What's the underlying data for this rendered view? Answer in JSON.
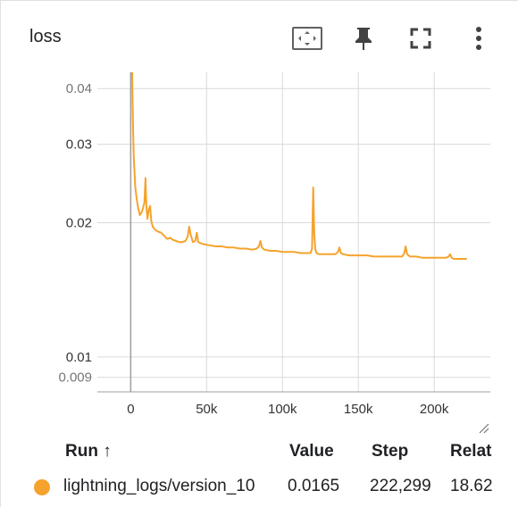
{
  "card": {
    "title": "loss",
    "icons": [
      "fit-domain-icon",
      "pin-icon",
      "fullscreen-icon",
      "more-vert-icon"
    ]
  },
  "chart_data": {
    "type": "line",
    "title": "",
    "xlabel": "",
    "ylabel": "",
    "yscale": "log",
    "xlim": [
      -22000,
      237000
    ],
    "ylim": [
      0.00835,
      0.0435
    ],
    "yticks": [
      {
        "value": 0.04,
        "label": "0.04",
        "minor": true
      },
      {
        "value": 0.03,
        "label": "0.03",
        "minor": false
      },
      {
        "value": 0.02,
        "label": "0.02",
        "minor": false
      },
      {
        "value": 0.01,
        "label": "0.01",
        "minor": false
      },
      {
        "value": 0.009,
        "label": "0.009",
        "minor": true
      }
    ],
    "xticks": [
      {
        "value": 0,
        "label": "0"
      },
      {
        "value": 50000,
        "label": "50k"
      },
      {
        "value": 100000,
        "label": "100k"
      },
      {
        "value": 150000,
        "label": "150k"
      },
      {
        "value": 200000,
        "label": "200k"
      }
    ],
    "grid": true,
    "series": [
      {
        "name": "lightning_logs/version_10",
        "color": "#f5a32c",
        "x": [
          500,
          1000,
          1500,
          2000,
          3000,
          4000,
          5000,
          6000,
          7500,
          9000,
          9700,
          10300,
          11000,
          12000,
          12800,
          13500,
          14500,
          16000,
          18000,
          20000,
          22000,
          24000,
          26000,
          28000,
          30000,
          32000,
          34000,
          36000,
          37500,
          38500,
          39500,
          41000,
          42500,
          43500,
          44500,
          46000,
          48000,
          52000,
          56000,
          60000,
          64000,
          68000,
          72000,
          76000,
          80000,
          83000,
          84500,
          85500,
          86500,
          88000,
          92000,
          96000,
          100000,
          104000,
          108000,
          112000,
          116000,
          118500,
          119500,
          120300,
          121000,
          121700,
          122500,
          124000,
          128000,
          132000,
          135000,
          136500,
          137500,
          138500,
          140000,
          144000,
          148000,
          152000,
          156000,
          160000,
          164000,
          168000,
          172000,
          176000,
          179000,
          180300,
          181200,
          182200,
          184000,
          188000,
          192000,
          196000,
          200000,
          204000,
          208000,
          209500,
          210500,
          211500,
          213000,
          216000,
          219000,
          221500
        ],
        "values": [
          0.058,
          0.042,
          0.033,
          0.028,
          0.024,
          0.0225,
          0.0215,
          0.0208,
          0.0212,
          0.0222,
          0.0252,
          0.0218,
          0.0204,
          0.0215,
          0.0218,
          0.0202,
          0.0196,
          0.0193,
          0.0191,
          0.019,
          0.0187,
          0.0184,
          0.0185,
          0.0183,
          0.0182,
          0.0181,
          0.0181,
          0.0182,
          0.0186,
          0.0196,
          0.0188,
          0.0181,
          0.0182,
          0.019,
          0.0181,
          0.018,
          0.0179,
          0.0178,
          0.0177,
          0.0177,
          0.0176,
          0.0176,
          0.0175,
          0.0175,
          0.0174,
          0.0175,
          0.0177,
          0.0182,
          0.0176,
          0.0174,
          0.0173,
          0.0173,
          0.0172,
          0.0172,
          0.0172,
          0.0171,
          0.0171,
          0.0171,
          0.0175,
          0.024,
          0.0188,
          0.0174,
          0.0171,
          0.017,
          0.017,
          0.017,
          0.017,
          0.0172,
          0.0176,
          0.0171,
          0.017,
          0.0169,
          0.0169,
          0.0169,
          0.0169,
          0.0168,
          0.0168,
          0.0168,
          0.0168,
          0.0168,
          0.0168,
          0.0171,
          0.0177,
          0.017,
          0.0168,
          0.0168,
          0.0167,
          0.0167,
          0.0167,
          0.0167,
          0.0167,
          0.0168,
          0.017,
          0.0167,
          0.0166,
          0.0166,
          0.0166,
          0.0166
        ]
      }
    ]
  },
  "table": {
    "headers": {
      "run": "Run ↑",
      "value": "Value",
      "step": "Step",
      "relative": "Relat"
    },
    "rows": [
      {
        "run": "lightning_logs/version_10",
        "value": "0.0165",
        "step": "222,299",
        "relative": "18.62",
        "color": "#f5a32c"
      }
    ]
  }
}
